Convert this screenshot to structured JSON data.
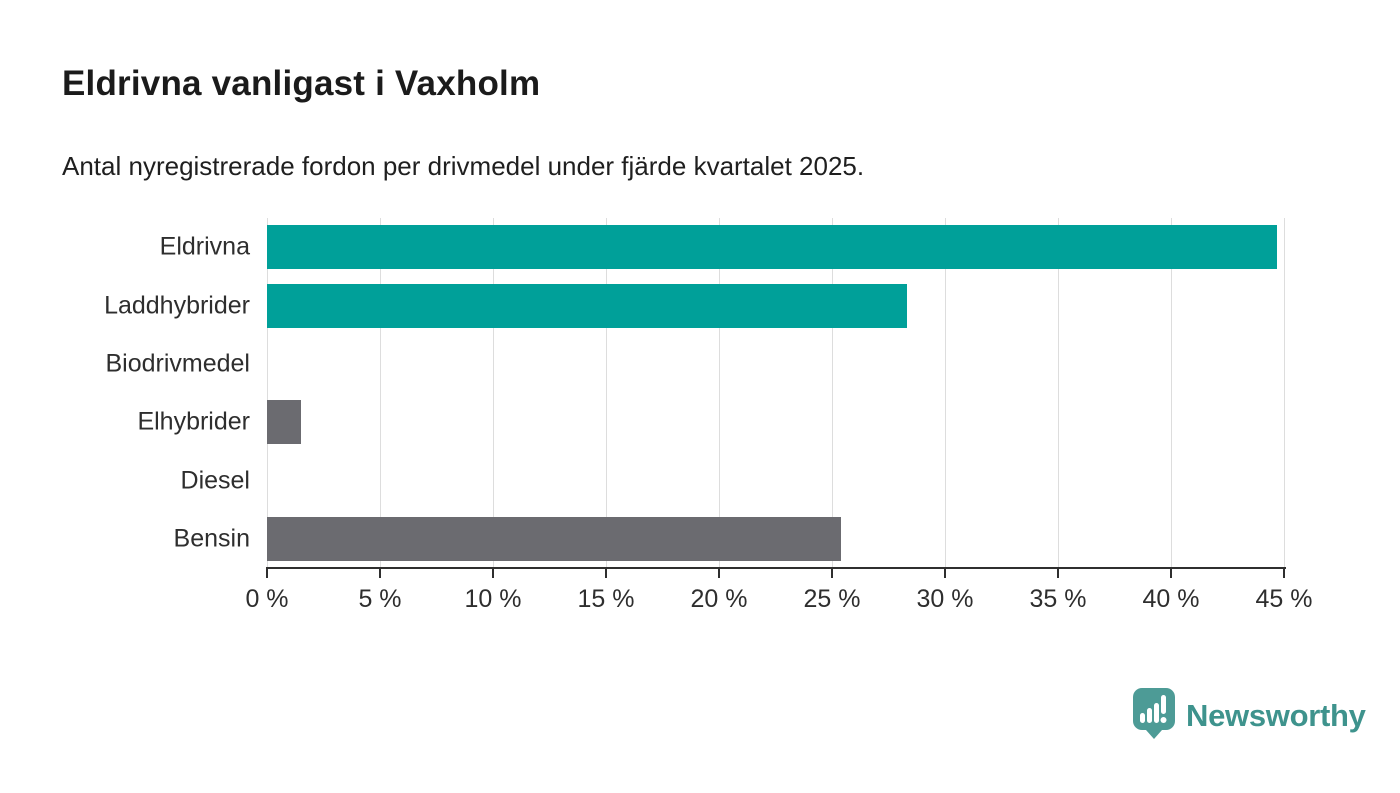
{
  "header": {
    "title": "Eldrivna vanligast i Vaxholm",
    "subtitle": "Antal nyregistrerade fordon per drivmedel under fjärde kvartalet 2025."
  },
  "chart_data": {
    "type": "bar",
    "orientation": "horizontal",
    "title": "Eldrivna vanligast i Vaxholm",
    "subtitle": "Antal nyregistrerade fordon per drivmedel under fjärde kvartalet 2025.",
    "categories": [
      "Eldrivna",
      "Laddhybrider",
      "Biodrivmedel",
      "Elhybrider",
      "Diesel",
      "Bensin"
    ],
    "values": [
      44.7,
      28.3,
      0,
      1.5,
      0,
      25.4
    ],
    "unit": "%",
    "bar_colors": [
      "#00a099",
      "#00a099",
      "#6b6b70",
      "#6b6b70",
      "#6b6b70",
      "#6b6b70"
    ],
    "series_colors": {
      "teal": "#00a099",
      "gray": "#6b6b70"
    },
    "xlim": [
      0,
      45
    ],
    "x_tick_values": [
      0,
      5,
      10,
      15,
      20,
      25,
      30,
      35,
      40,
      45
    ],
    "x_tick_labels": [
      "0 %",
      "5 %",
      "10 %",
      "15 %",
      "20 %",
      "25 %",
      "30 %",
      "35 %",
      "40 %",
      "45 %"
    ],
    "xlabel": "",
    "ylabel": "",
    "grid": true,
    "gridline_color": "#dddddd",
    "axis_color": "#2f2f2f",
    "legend_position": "none"
  },
  "footer": {
    "brand": "Newsworthy",
    "brand_color": "#3e938d",
    "logo_icon": "bar-chart-speech-bubble-icon",
    "logo_color": "#4d9b96"
  }
}
